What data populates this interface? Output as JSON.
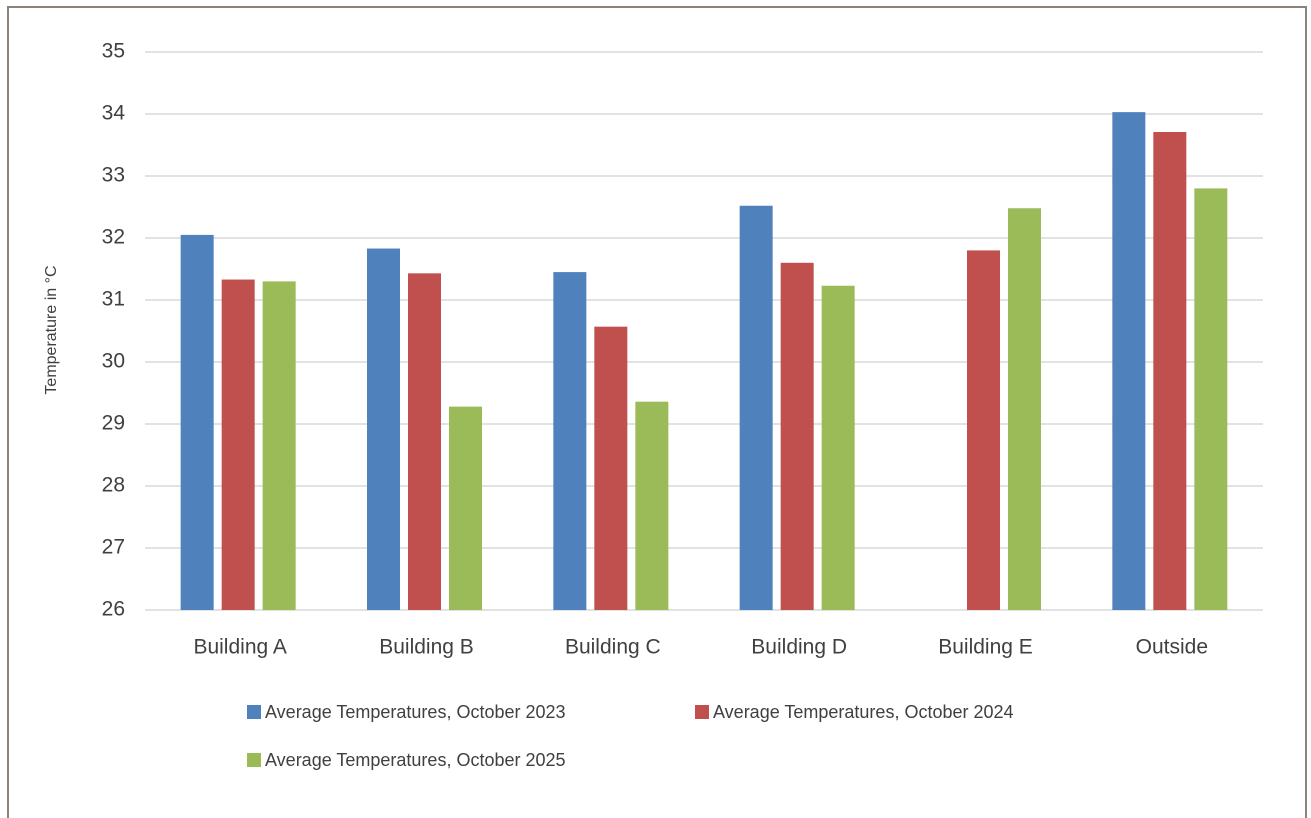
{
  "chart_data": {
    "type": "bar",
    "y_label": "Temperature in °C",
    "categories": [
      "Building A",
      "Building B",
      "Building C",
      "Building D",
      "Building E",
      "Outside"
    ],
    "series": [
      {
        "name": "Average Temperatures, October 2023",
        "color": "#4f81bd",
        "values": [
          32.05,
          31.83,
          31.45,
          32.52,
          null,
          34.03
        ]
      },
      {
        "name": "Average Temperatures, October 2024",
        "color": "#c0504d",
        "values": [
          31.33,
          31.43,
          30.57,
          31.6,
          31.8,
          33.71
        ]
      },
      {
        "name": "Average Temperatures, October 2025",
        "color": "#9bbb59",
        "values": [
          31.3,
          29.28,
          29.36,
          31.23,
          32.48,
          32.8
        ]
      }
    ],
    "ylim": [
      26,
      35
    ],
    "yticks": [
      26,
      27,
      28,
      29,
      30,
      31,
      32,
      33,
      34,
      35
    ],
    "grid": true
  }
}
